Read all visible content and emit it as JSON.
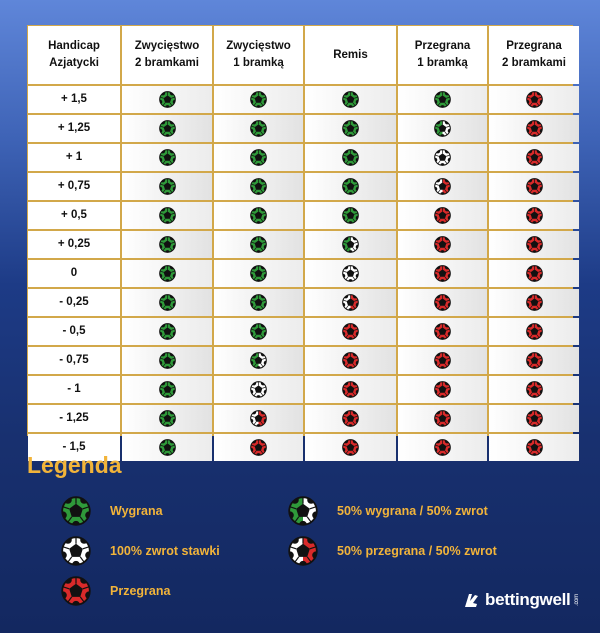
{
  "table": {
    "headers": [
      {
        "line1": "Handicap",
        "line2": "Azjatycki"
      },
      {
        "line1": "Zwycięstwo",
        "line2": "2 bramkami"
      },
      {
        "line1": "Zwycięstwo",
        "line2": "1 bramką"
      },
      {
        "line1": "Remis",
        "line2": ""
      },
      {
        "line1": "Przegrana",
        "line2": "1 bramką"
      },
      {
        "line1": "Przegrana",
        "line2": "2 bramkami"
      }
    ],
    "rows": [
      {
        "label": "+ 1,5",
        "cells": [
          "win",
          "win",
          "win",
          "win",
          "loss"
        ]
      },
      {
        "label": "+ 1,25",
        "cells": [
          "win",
          "win",
          "win",
          "halfwin",
          "loss"
        ]
      },
      {
        "label": "+ 1",
        "cells": [
          "win",
          "win",
          "win",
          "refund",
          "loss"
        ]
      },
      {
        "label": "+ 0,75",
        "cells": [
          "win",
          "win",
          "win",
          "halfloss",
          "loss"
        ]
      },
      {
        "label": "+ 0,5",
        "cells": [
          "win",
          "win",
          "win",
          "loss",
          "loss"
        ]
      },
      {
        "label": "+ 0,25",
        "cells": [
          "win",
          "win",
          "halfwin",
          "loss",
          "loss"
        ]
      },
      {
        "label": "0",
        "cells": [
          "win",
          "win",
          "refund",
          "loss",
          "loss"
        ]
      },
      {
        "label": "- 0,25",
        "cells": [
          "win",
          "win",
          "halfloss",
          "loss",
          "loss"
        ]
      },
      {
        "label": "- 0,5",
        "cells": [
          "win",
          "win",
          "loss",
          "loss",
          "loss"
        ]
      },
      {
        "label": "- 0,75",
        "cells": [
          "win",
          "halfwin",
          "loss",
          "loss",
          "loss"
        ]
      },
      {
        "label": "- 1",
        "cells": [
          "win",
          "refund",
          "loss",
          "loss",
          "loss"
        ]
      },
      {
        "label": "- 1,25",
        "cells": [
          "win",
          "halfloss",
          "loss",
          "loss",
          "loss"
        ]
      },
      {
        "label": "- 1,5",
        "cells": [
          "win",
          "loss",
          "loss",
          "loss",
          "loss"
        ]
      }
    ]
  },
  "legend": {
    "title": "Legenda",
    "items": [
      {
        "type": "win",
        "label": "Wygrana"
      },
      {
        "type": "halfwin",
        "label": "50% wygrana / 50% zwrot"
      },
      {
        "type": "refund",
        "label": "100% zwrot stawki"
      },
      {
        "type": "halfloss",
        "label": "50% przegrana / 50% zwrot"
      },
      {
        "type": "loss",
        "label": "Przegrana"
      }
    ]
  },
  "colors": {
    "win": "#2f9a3a",
    "loss": "#d92a2a",
    "refund": "#ffffff",
    "grid_border": "#d2a84a",
    "legend_text": "#f2b43a"
  },
  "brand": {
    "name": "bettingwell",
    "suffix": ".com",
    "icon": "bettingwell-logo-icon"
  }
}
